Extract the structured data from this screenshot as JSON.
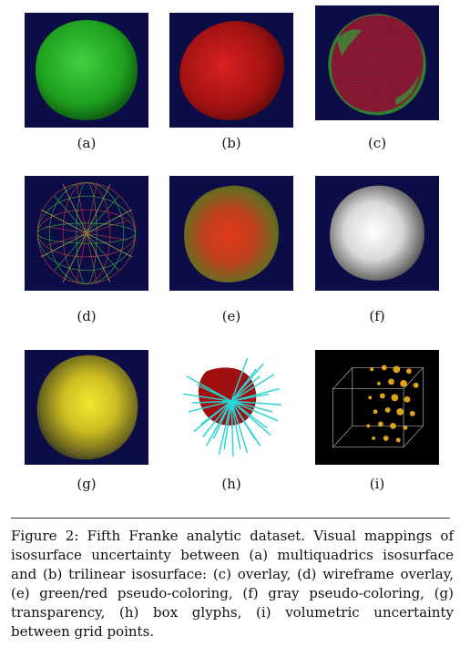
{
  "panels": [
    {
      "label": "(a)"
    },
    {
      "label": "(b)"
    },
    {
      "label": "(c)"
    },
    {
      "label": "(d)"
    },
    {
      "label": "(e)"
    },
    {
      "label": "(f)"
    },
    {
      "label": "(g)"
    },
    {
      "label": "(h)"
    },
    {
      "label": "(i)"
    }
  ],
  "colors": {
    "background": "#0c0c46",
    "green_surface": "#22b522",
    "red_surface": "#b31212",
    "gray_surface": "#f2f2f2",
    "yellow_surface": "#e2d31a",
    "cyan_glyph": "#29d4d4",
    "gold_sphere": "#e0a21b"
  },
  "caption": {
    "label": "Figure 2:",
    "text": "Fifth Franke analytic dataset. Visual mappings of isosurface uncertainty between (a) multiquadrics isosurface and (b) trilinear isosurface: (c) overlay, (d) wireframe overlay, (e) green/red pseudo-coloring, (f) gray pseudo-coloring, (g) transparency, (h) box glyphs, (i) volumetric uncertainty between grid points."
  }
}
